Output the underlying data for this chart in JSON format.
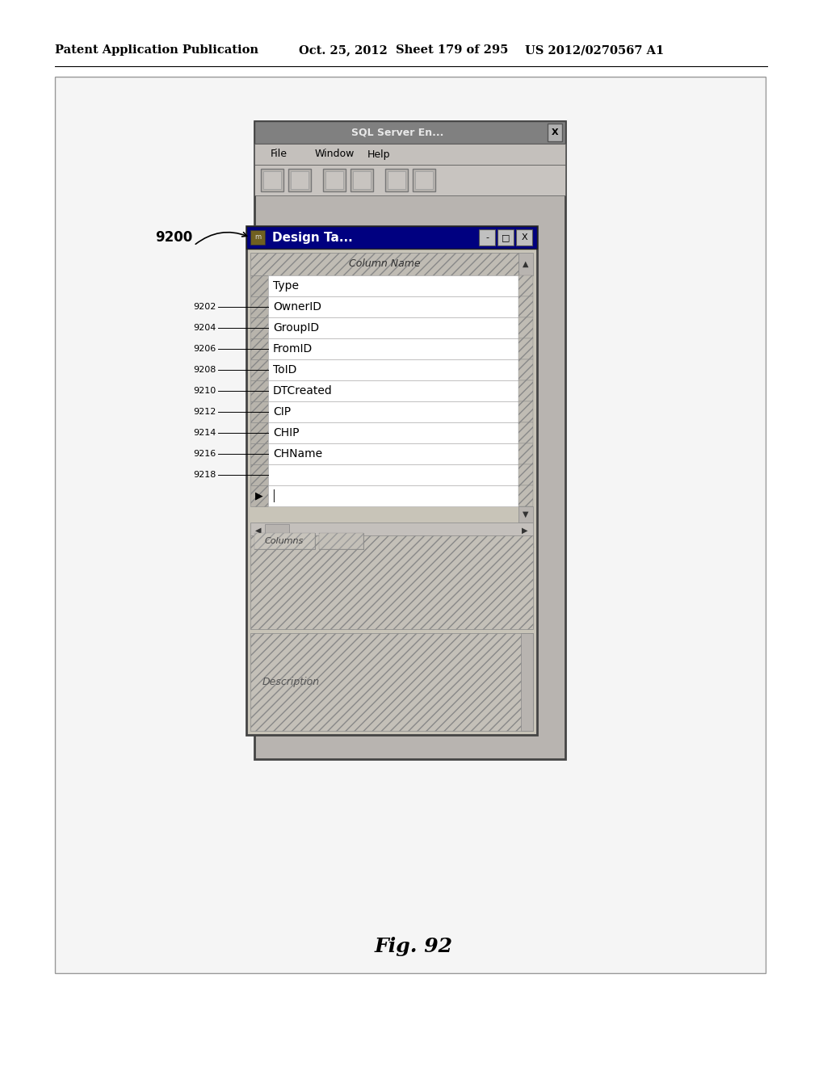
{
  "header_text": "Patent Application Publication",
  "header_date": "Oct. 25, 2012",
  "header_sheet": "Sheet 179 of 295",
  "header_patent": "US 2012/0270567 A1",
  "fig_label": "Fig. 92",
  "label_9200": "9200",
  "label_rows": [
    {
      "label": "9202",
      "row": "OwnerID"
    },
    {
      "label": "9204",
      "row": "GroupID"
    },
    {
      "label": "9206",
      "row": "FromID"
    },
    {
      "label": "9208",
      "row": "ToID"
    },
    {
      "label": "9210",
      "row": "DTCreated"
    },
    {
      "label": "9212",
      "row": "CIP"
    },
    {
      "label": "9214",
      "row": "CHIP"
    },
    {
      "label": "9216",
      "row": "CHName"
    },
    {
      "label": "9218",
      "row": ""
    }
  ],
  "column_name_header": "Column Name",
  "first_row": "Type",
  "title_bar": "Design Ta...",
  "sql_title": "SQL Server En...",
  "menu_items": [
    "File",
    "Window",
    "Help"
  ],
  "columns_label": "Columns",
  "description_label": "Description",
  "outer_border_color": "#888888",
  "title_bar_bg": "#808080",
  "menu_bg": "#c0c0c0",
  "toolbar_bg": "#c8c8c8",
  "dialog_bg": "#c8c4b8",
  "dialog_title_bg": "#000080",
  "table_header_bg": "#b8b4ac",
  "row_selector_bg": "#b0aca4",
  "row_bg": "#ffffff",
  "scrollbar_bg": "#c0bcb4",
  "bottom_panel_bg": "#c0bcb4",
  "tab_bg": "#c8c4bc"
}
